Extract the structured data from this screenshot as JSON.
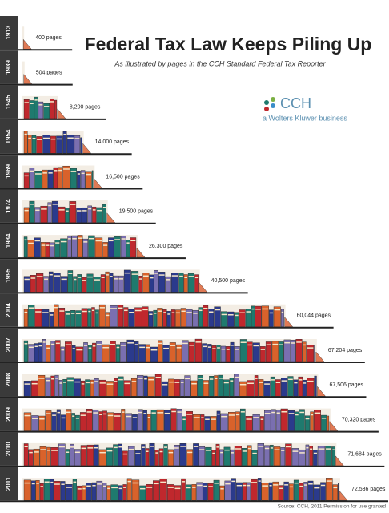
{
  "chart_data": {
    "type": "bar",
    "orientation": "horizontal",
    "title": "Federal Tax Law Keeps Piling Up",
    "subtitle": "As illustrated by pages in the CCH Standard Federal Tax Reporter",
    "logo": "CCH",
    "logo_tagline": "a Wolters Kluwer business",
    "source": "Source: CCH, 2011 Permission for use granted",
    "categories": [
      "1913",
      "1939",
      "1945",
      "1954",
      "1969",
      "1974",
      "1984",
      "1995",
      "2004",
      "2007",
      "2008",
      "2009",
      "2010",
      "2011"
    ],
    "values": [
      400,
      504,
      8200,
      14000,
      16500,
      19500,
      26300,
      40500,
      60044,
      67204,
      67506,
      70320,
      71684,
      72536
    ],
    "value_labels": [
      "400 pages",
      "504 pages",
      "8,200 pages",
      "14,000 pages",
      "16,500 pages",
      "19,500 pages",
      "26,300 pages",
      "40,500 pages",
      "60,044 pages",
      "67,204 pages",
      "67,506 pages",
      "70,320 pages",
      "71,684 pages",
      "72,536 pages"
    ],
    "colors": [
      "#c0282d",
      "#2b3a8c",
      "#1f7a6e",
      "#7a6fb0",
      "#d9622b"
    ]
  }
}
